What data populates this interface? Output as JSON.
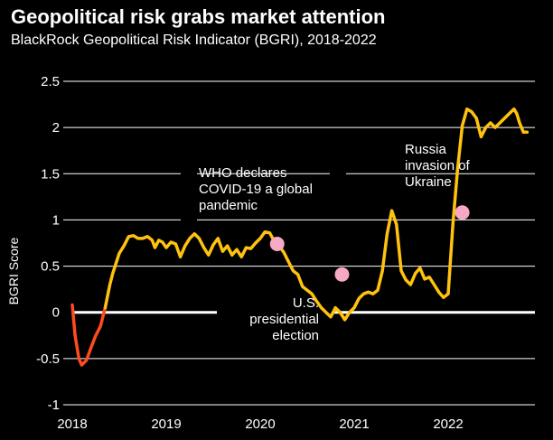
{
  "chart_data": {
    "type": "line",
    "title": "Geopolitical risk grabs market attention",
    "subtitle": "BlackRock Geopolitical Risk Indicator (BGRI), 2018-2022",
    "ylabel": "BGRI Score",
    "xlabel": "",
    "ylim": [
      -1,
      2.5
    ],
    "xlim": [
      2018,
      2022.95
    ],
    "yticks": [
      {
        "value": 2.5,
        "label": "2.5"
      },
      {
        "value": 2,
        "label": "2"
      },
      {
        "value": 1.5,
        "label": "1.5"
      },
      {
        "value": 1,
        "label": "1"
      },
      {
        "value": 0.5,
        "label": "0.5"
      },
      {
        "value": 0,
        "label": "0"
      },
      {
        "value": -0.5,
        "label": "-0.5"
      },
      {
        "value": -1,
        "label": "-1"
      }
    ],
    "xticks": [
      {
        "value": 2018,
        "label": "2018"
      },
      {
        "value": 2019,
        "label": "2019"
      },
      {
        "value": 2020,
        "label": "2020"
      },
      {
        "value": 2021,
        "label": "2021"
      },
      {
        "value": 2022,
        "label": "2022"
      }
    ],
    "grid": "horizontal",
    "colors": {
      "positive": "#ffc20e",
      "negative": "#ff4b1f",
      "marker": "#f7a8c4",
      "zero_line": "#ffffff",
      "grid": "#ffffff"
    },
    "series": [
      {
        "x": [
          2018.0,
          2018.03,
          2018.07,
          2018.1,
          2018.15,
          2018.2,
          2018.25,
          2018.3,
          2018.35,
          2018.4,
          2018.43,
          2018.5,
          2018.55,
          2018.6,
          2018.65,
          2018.7,
          2018.75,
          2018.8,
          2018.85,
          2018.88,
          2018.92,
          2018.96,
          2019.0,
          2019.05,
          2019.1,
          2019.15,
          2019.2,
          2019.25,
          2019.3,
          2019.35,
          2019.4,
          2019.45,
          2019.5,
          2019.55,
          2019.6,
          2019.65,
          2019.7,
          2019.75,
          2019.8,
          2019.85,
          2019.9,
          2019.95,
          2020.0,
          2020.05,
          2020.1,
          2020.15,
          2020.2,
          2020.25,
          2020.3,
          2020.35,
          2020.4,
          2020.45,
          2020.5,
          2020.55,
          2020.6,
          2020.65,
          2020.7,
          2020.75,
          2020.8,
          2020.85,
          2020.9,
          2020.95,
          2021.0,
          2021.05,
          2021.1,
          2021.15,
          2021.2,
          2021.25,
          2021.3,
          2021.35,
          2021.4,
          2021.45,
          2021.5,
          2021.55,
          2021.6,
          2021.65,
          2021.7,
          2021.75,
          2021.8,
          2021.85,
          2021.9,
          2021.95,
          2022.0,
          2022.05,
          2022.1,
          2022.15,
          2022.2,
          2022.25,
          2022.3,
          2022.35,
          2022.4,
          2022.45,
          2022.5,
          2022.55,
          2022.6,
          2022.65,
          2022.7,
          2022.73,
          2022.76,
          2022.78,
          2022.8,
          2022.82,
          2022.84
        ],
        "y": [
          0.08,
          -0.25,
          -0.5,
          -0.57,
          -0.52,
          -0.38,
          -0.25,
          -0.15,
          0.05,
          0.3,
          0.42,
          0.64,
          0.72,
          0.82,
          0.83,
          0.8,
          0.8,
          0.82,
          0.78,
          0.7,
          0.78,
          0.76,
          0.7,
          0.76,
          0.74,
          0.6,
          0.72,
          0.8,
          0.85,
          0.8,
          0.7,
          0.62,
          0.73,
          0.8,
          0.66,
          0.72,
          0.62,
          0.68,
          0.6,
          0.7,
          0.69,
          0.75,
          0.8,
          0.87,
          0.86,
          0.77,
          0.72,
          0.65,
          0.55,
          0.45,
          0.41,
          0.28,
          0.24,
          0.2,
          0.12,
          0.05,
          0.0,
          -0.05,
          0.05,
          0.0,
          -0.08,
          0.0,
          0.05,
          0.15,
          0.2,
          0.22,
          0.2,
          0.24,
          0.45,
          0.85,
          1.1,
          0.95,
          0.45,
          0.35,
          0.3,
          0.42,
          0.48,
          0.36,
          0.38,
          0.3,
          0.22,
          0.16,
          0.2,
          0.95,
          1.55,
          2.02,
          2.2,
          2.17,
          2.1,
          1.9,
          2.0,
          2.05,
          2.0,
          2.05,
          2.1,
          2.15,
          2.2,
          2.15,
          2.05,
          2.0,
          1.95,
          1.95,
          1.95
        ]
      }
    ],
    "markers": [
      {
        "x": 2020.18,
        "y": 0.74
      },
      {
        "x": 2020.87,
        "y": 0.41
      },
      {
        "x": 2022.15,
        "y": 1.08
      }
    ],
    "annotations": [
      {
        "lines": [
          "WHO declares",
          "COVID-19 a global",
          "pandemic"
        ]
      },
      {
        "lines": [
          "U.S.",
          "presidential",
          "election"
        ]
      },
      {
        "lines": [
          "Russia",
          "invasion of",
          "Ukraine"
        ]
      }
    ]
  }
}
